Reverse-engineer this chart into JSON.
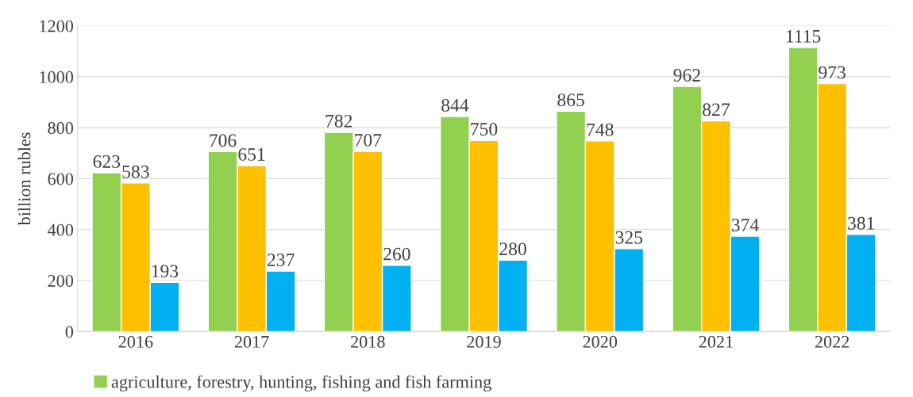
{
  "chart_data": {
    "type": "bar",
    "ylabel": "billion rubles",
    "categories": [
      "2016",
      "2017",
      "2018",
      "2019",
      "2020",
      "2021",
      "2022"
    ],
    "series": [
      {
        "name": "agriculture, forestry, hunting, fishing and fish farming",
        "color": "#92d050",
        "values": [
          623,
          706,
          782,
          844,
          865,
          962,
          1115
        ]
      },
      {
        "color": "#ffc000",
        "values": [
          583,
          651,
          707,
          750,
          748,
          827,
          973
        ]
      },
      {
        "color": "#00b0f0",
        "values": [
          193,
          237,
          260,
          280,
          325,
          374,
          381
        ]
      }
    ],
    "ylim": [
      0,
      1200
    ],
    "yticks": [
      0,
      200,
      400,
      600,
      800,
      1000,
      1200
    ],
    "grid": "y",
    "legend": "bottom",
    "data_labels": true
  }
}
